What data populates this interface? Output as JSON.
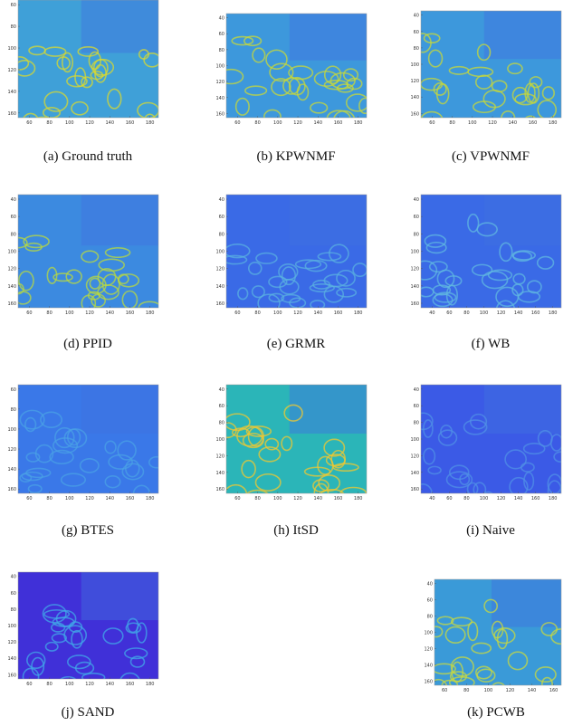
{
  "panels": [
    {
      "caption": "(a) Ground truth",
      "xticks": [
        60,
        80,
        100,
        120,
        140,
        160,
        180
      ],
      "yticks": [
        60,
        80,
        100,
        120,
        140,
        160
      ]
    },
    {
      "caption": "(b) KPWNMF",
      "xticks": [
        60,
        80,
        100,
        120,
        140,
        160,
        180
      ],
      "yticks": [
        40,
        60,
        80,
        100,
        120,
        140,
        160
      ]
    },
    {
      "caption": "(c) VPWNMF",
      "xticks": [
        60,
        80,
        100,
        120,
        140,
        160,
        180
      ],
      "yticks": [
        40,
        60,
        80,
        100,
        120,
        140,
        160
      ]
    },
    {
      "caption": "(d) PPID",
      "xticks": [
        60,
        80,
        100,
        120,
        140,
        160,
        180
      ],
      "yticks": [
        40,
        60,
        80,
        100,
        120,
        140,
        160
      ]
    },
    {
      "caption": "(e) GRMR",
      "xticks": [
        60,
        80,
        100,
        120,
        140,
        160,
        180
      ],
      "yticks": [
        40,
        60,
        80,
        100,
        120,
        140,
        160
      ]
    },
    {
      "caption": "(f) WB",
      "xticks": [
        40,
        60,
        80,
        100,
        120,
        140,
        160,
        180
      ],
      "yticks": [
        40,
        60,
        80,
        100,
        120,
        140,
        160
      ]
    },
    {
      "caption": "(g) BTES",
      "xticks": [
        60,
        80,
        100,
        120,
        140,
        160,
        180
      ],
      "yticks": [
        60,
        80,
        100,
        120,
        140,
        160
      ]
    },
    {
      "caption": "(h) ItSD",
      "xticks": [
        60,
        80,
        100,
        120,
        140,
        160,
        180
      ],
      "yticks": [
        40,
        60,
        80,
        100,
        120,
        140,
        160
      ]
    },
    {
      "caption": "(i) Naive",
      "xticks": [
        40,
        60,
        80,
        100,
        120,
        140,
        160,
        180
      ],
      "yticks": [
        40,
        60,
        80,
        100,
        120,
        140,
        160
      ]
    },
    {
      "caption": "(j) SAND",
      "xticks": [
        60,
        80,
        100,
        120,
        140,
        160,
        180
      ],
      "yticks": [
        40,
        60,
        80,
        100,
        120,
        140,
        160
      ]
    },
    {
      "caption": "(k) PCWB",
      "xticks": [
        60,
        80,
        100,
        120,
        140,
        160
      ],
      "yticks": [
        40,
        60,
        80,
        100,
        120,
        140,
        160
      ]
    }
  ]
}
